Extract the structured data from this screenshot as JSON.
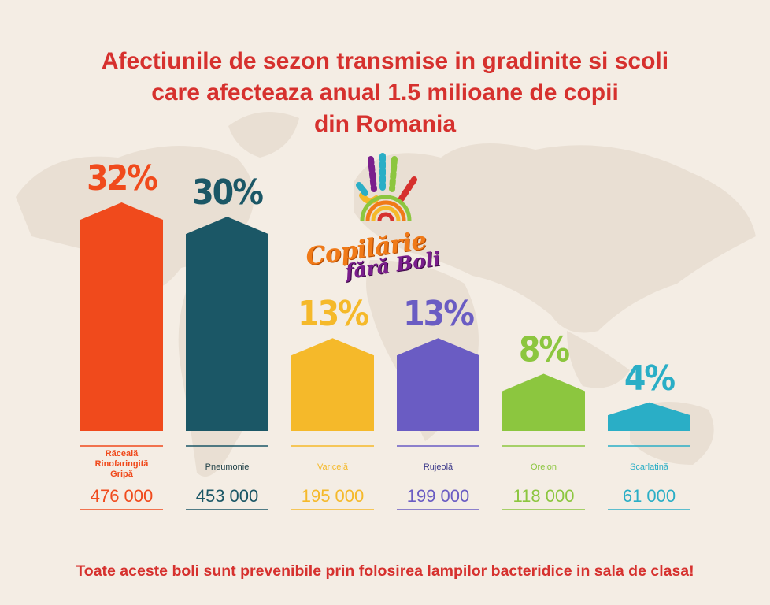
{
  "title_lines": [
    "Afectiunile de sezon transmise in gradinite si scoli",
    "care afecteaza anual 1.5 milioane de copii",
    "din Romania"
  ],
  "logo": {
    "line1": "Copilărie",
    "line2": "fără Boli"
  },
  "footer": "Toate aceste boli sunt prevenibile prin folosirea lampilor bacteridice in sala de clasa!",
  "chart_data": {
    "type": "bar",
    "categories": [
      "Răceală Rinofaringită Gripă",
      "Pneumonie",
      "Varicelă",
      "Rujeolă",
      "Oreion",
      "Scarlatină"
    ],
    "category_lines": [
      [
        "Răceală",
        "Rinofaringită",
        "Gripă"
      ],
      [
        "Pneumonie"
      ],
      [
        "Varicelă"
      ],
      [
        "Rujeolă"
      ],
      [
        "Oreion"
      ],
      [
        "Scarlatină"
      ]
    ],
    "values": [
      32,
      30,
      13,
      13,
      8,
      4
    ],
    "value_labels": [
      "32%",
      "30%",
      "13%",
      "13%",
      "8%",
      "4%"
    ],
    "counts": [
      "476 000",
      "453 000",
      "195 000",
      "199 000",
      "118 000",
      "61 000"
    ],
    "unit": "%",
    "colors": [
      "#f04a1c",
      "#1b5766",
      "#f5b92a",
      "#6a5cc3",
      "#8cc63f",
      "#2aaec6"
    ],
    "ylim": [
      0,
      32
    ],
    "grid": false,
    "legend": "none"
  }
}
